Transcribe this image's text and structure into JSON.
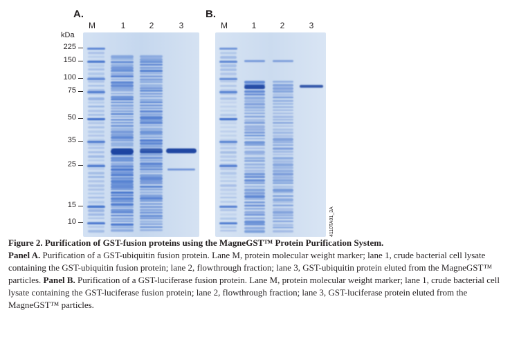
{
  "panel_a": {
    "letter": "A.",
    "lanes": [
      "M",
      "1",
      "2",
      "3"
    ],
    "unit": "kDa",
    "markers": [
      "225",
      "150",
      "100",
      "75",
      "50",
      "35",
      "25",
      "15",
      "10"
    ]
  },
  "panel_b": {
    "letter": "B.",
    "lanes": [
      "M",
      "1",
      "2",
      "3"
    ]
  },
  "side_code": "4110TA01_3A",
  "colors": {
    "gel_bg": "#c9d9ee",
    "band": "#2f63c7",
    "band_dark": "#173f9e",
    "text": "#231f20"
  },
  "caption": {
    "title": "Figure 2. Purification of GST-fusion proteins using the MagneGST™ Protein Purification System.",
    "panel_a_label": "Panel A.",
    "panel_a_text": " Purification of a GST-ubiquitin fusion protein. Lane M, protein molecular weight marker; lane 1, crude bacterial cell lysate containing the GST-ubiquitin fusion protein; lane 2, flowthrough fraction; lane 3, GST-ubiquitin protein eluted from the MagneGST™ particles. ",
    "panel_b_label": "Panel B.",
    "panel_b_text": " Purification of a GST-luciferase fusion protein. Lane M, protein molecular weight marker; lane 1, crude bacterial cell lysate containing the GST-luciferase fusion protein; lane 2, flowthrough fraction; lane 3, GST-luciferase protein eluted from the MagneGST™ particles."
  }
}
